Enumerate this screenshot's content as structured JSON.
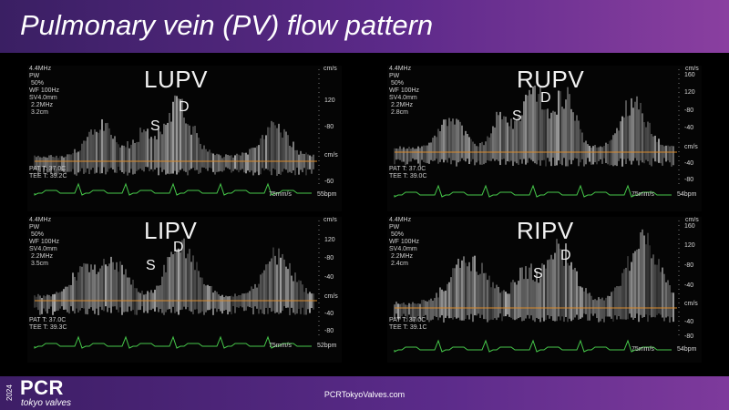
{
  "slide": {
    "title": "Pulmonary vein (PV) flow pattern"
  },
  "panels": [
    {
      "vein": "LUPV",
      "s": "S",
      "d": "D",
      "settings": "4.4MHz\nPW\n 50%\nWF 100Hz\nSV4.0mm\n 2.2MHz\n 3.2cm",
      "temps": "PAT T: 37.0C\nTEE T: 39.2C",
      "ticks": [
        "cm/s",
        "120",
        "-80",
        "cm/s",
        "-60"
      ],
      "sweep": "75mm/s",
      "hr": "55bpm"
    },
    {
      "vein": "RUPV",
      "s": "S",
      "d": "D",
      "settings": "4.4MHz\nPW\n 50%\nWF 100Hz\nSV4.0mm\n 2.2MHz\n 2.8cm",
      "temps": "PAT T: 37.0C\nTEE T: 39.0C",
      "ticks": [
        "cm/s",
        "160",
        "120",
        "-80",
        "-40",
        "cm/s",
        "-40",
        "-80"
      ],
      "sweep": "75mm/s",
      "hr": "54bpm"
    },
    {
      "vein": "LIPV",
      "s": "S",
      "d": "D",
      "settings": "4.4MHz\nPW\n 50%\nWF 100Hz\nSV4.0mm\n 2.2MHz\n 3.5cm",
      "temps": "PAT T: 37.0C\nTEE T: 39.3C",
      "ticks": [
        "cm/s",
        "120",
        "-80",
        "-40",
        "cm/s",
        "-40",
        "-80"
      ],
      "sweep": "75mm/s",
      "hr": "52bpm"
    },
    {
      "vein": "RIPV",
      "s": "S",
      "d": "D",
      "settings": "4.4MHz\nPW\n 50%\nWF 100Hz\nSV4.0mm\n 2.2MHz\n 2.4cm",
      "temps": "PAT T: 37.0C\nTEE T: 39.1C",
      "ticks": [
        "cm/s",
        "160",
        "120",
        "-80",
        "-40",
        "cm/s",
        "-40",
        "-80"
      ],
      "sweep": "75mm/s",
      "hr": "54bpm"
    }
  ],
  "footer": {
    "year": "2024",
    "brand": "PCR",
    "brand_sub": "tokyo valves",
    "url": "PCRTokyoValves.com"
  },
  "colors": {
    "header": "#5d2a8a",
    "baseline": "#d98a2b",
    "ecg": "#46c84a"
  }
}
